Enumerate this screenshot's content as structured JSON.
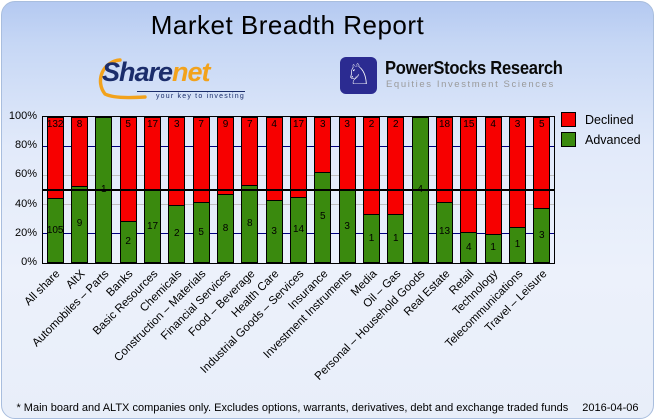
{
  "title": "Market Breadth Report",
  "logos": {
    "sharenet": {
      "name_part1": "Share",
      "name_part2": "net",
      "tagline": "your key to investing",
      "brand_navy": "#1b2d6b",
      "brand_orange": "#f2a21c"
    },
    "powerstocks": {
      "name": "PowerStocks  Research",
      "tagline": "Equities Investment Sciences",
      "icon": "chess-knight-icon",
      "icon_glyph": "♘",
      "icon_bg": "#2b2b91"
    }
  },
  "chart_data": {
    "type": "bar",
    "stacked": true,
    "value_mode": "percent_of_total",
    "title": "Market Breadth Report",
    "ylim": [
      0,
      100
    ],
    "y_ticks": [
      "100%",
      "80%",
      "60%",
      "40%",
      "20%",
      "0%"
    ],
    "grid": [
      {
        "pct": 20,
        "color": "#00007f"
      },
      {
        "pct": 40,
        "color": "#bfbfbf"
      },
      {
        "pct": 60,
        "color": "#bfbfbf"
      },
      {
        "pct": 80,
        "color": "#00007f"
      }
    ],
    "midline": {
      "pct": 50,
      "color": "#000000"
    },
    "legend_position": "top-right",
    "categories": [
      "All share",
      "AltX",
      "Automobiles – Parts",
      "Banks",
      "Basic Resources",
      "Chemicals",
      "Construction – Materials",
      "Financial Services",
      "Food – Beverage",
      "Health Care",
      "Industrial Goods – Services",
      "Insurance",
      "Investment Instruments",
      "Media",
      "Oil – Gas",
      "Personal – Household Goods",
      "Real Estate",
      "Retail",
      "Technology",
      "Telecommunications",
      "Travel – Leisure"
    ],
    "series": [
      {
        "name": "Declined",
        "color": "#f70000",
        "values": [
          132,
          8,
          0,
          5,
          17,
          3,
          7,
          9,
          7,
          4,
          17,
          3,
          3,
          2,
          2,
          0,
          18,
          15,
          4,
          3,
          5
        ]
      },
      {
        "name": "Advanced",
        "color": "#3a8a0e",
        "values": [
          105,
          9,
          1,
          2,
          17,
          2,
          5,
          8,
          8,
          3,
          14,
          5,
          3,
          1,
          1,
          4,
          13,
          4,
          1,
          1,
          3
        ]
      }
    ]
  },
  "footer": {
    "note": "* Main board and ALTX companies only. Excludes options, warrants, derivatives, debt and exchange traded funds",
    "date": "2016-04-06"
  }
}
